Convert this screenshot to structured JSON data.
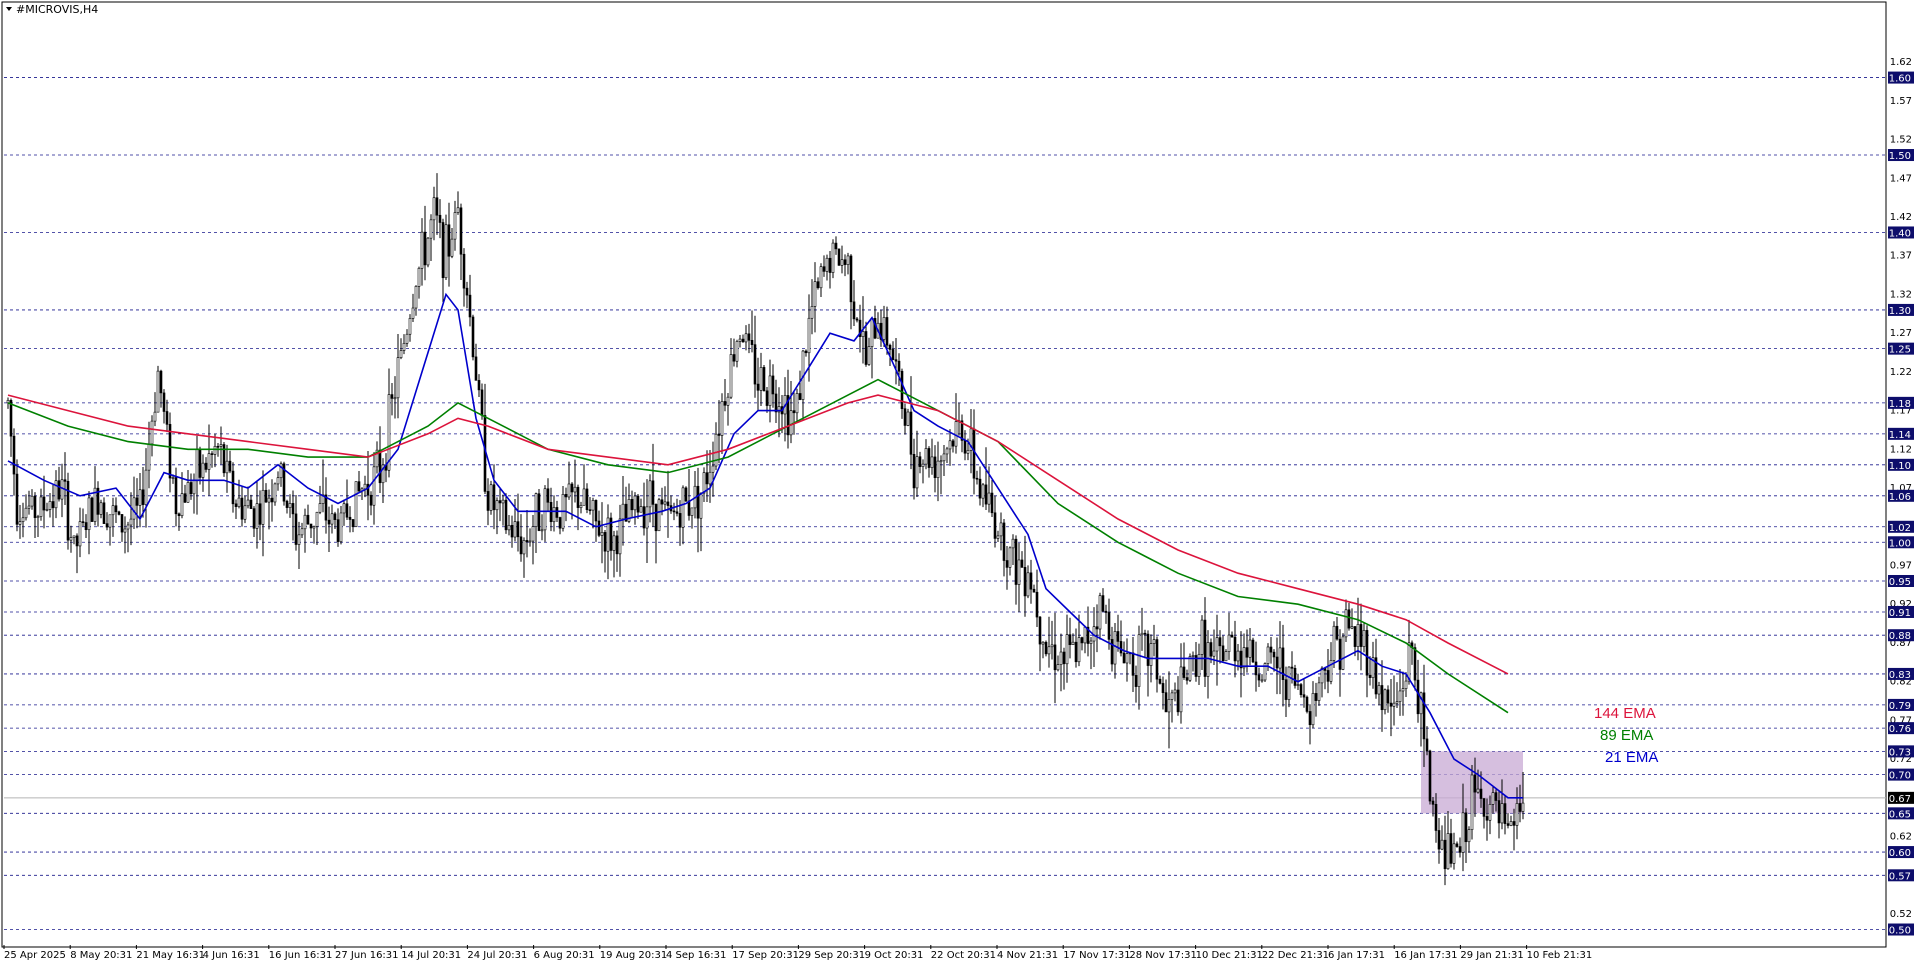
{
  "window": {
    "symbol_title": "#MICROVIS,H4"
  },
  "chart_data": {
    "type": "candlestick",
    "title": "#MICROVIS,H4",
    "ylim": [
      0.48,
      1.695
    ],
    "grid": "horizontal-dashed",
    "y_ticks": [
      "1.62",
      "1.57",
      "1.52",
      "1.47",
      "1.42",
      "1.37",
      "1.32",
      "1.27",
      "1.22",
      "1.17",
      "1.12",
      "1.07",
      "1.02",
      "0.97",
      "0.92",
      "0.87",
      "0.82",
      "0.77",
      "0.72",
      "0.67",
      "0.62",
      "0.57",
      "0.52"
    ],
    "highlighted_levels": [
      1.6,
      1.5,
      1.4,
      1.3,
      1.25,
      1.18,
      1.14,
      1.1,
      1.06,
      1.02,
      1.0,
      0.95,
      0.91,
      0.88,
      0.83,
      0.79,
      0.76,
      0.73,
      0.7,
      0.65,
      0.6,
      0.57,
      0.5
    ],
    "highlighted_labels": [
      "1.60",
      "1.50",
      "1.40",
      "1.30",
      "1.25",
      "1.18",
      "1.14",
      "1.10",
      "1.06",
      "1.02",
      "1.00",
      "0.95",
      "0.91",
      "0.88",
      "0.83",
      "0.79",
      "0.76",
      "0.73",
      "0.70",
      "0.65",
      "0.60",
      "0.57",
      "0.50"
    ],
    "current_price": 0.67,
    "current_price_label": "0.67",
    "x_ticks": [
      "25 Apr 2025",
      "8 May 20:31",
      "21 May 16:31",
      "4 Jun 16:31",
      "16 Jun 16:31",
      "27 Jun 16:31",
      "14 Jul 20:31",
      "24 Jul 20:31",
      "6 Aug 20:31",
      "19 Aug 20:31",
      "4 Sep 16:31",
      "17 Sep 20:31",
      "29 Sep 20:31",
      "9 Oct 20:31",
      "22 Oct 20:31",
      "4 Nov 21:31",
      "17 Nov 17:31",
      "28 Nov 17:31",
      "10 Dec 21:31",
      "22 Dec 21:31",
      "6 Jan 17:31",
      "16 Jan 17:31",
      "29 Jan 21:31",
      "10 Feb 21:31"
    ],
    "price_path": [
      [
        0,
        1.18
      ],
      [
        3,
        1.05
      ],
      [
        10,
        1.04
      ],
      [
        18,
        1.07
      ],
      [
        22,
        0.99
      ],
      [
        30,
        1.06
      ],
      [
        38,
        1.02
      ],
      [
        44,
        1.04
      ],
      [
        50,
        1.22
      ],
      [
        56,
        1.05
      ],
      [
        62,
        1.08
      ],
      [
        70,
        1.12
      ],
      [
        76,
        1.05
      ],
      [
        84,
        1.04
      ],
      [
        90,
        1.09
      ],
      [
        96,
        1.01
      ],
      [
        104,
        1.04
      ],
      [
        110,
        1.02
      ],
      [
        118,
        1.07
      ],
      [
        124,
        1.09
      ],
      [
        130,
        1.22
      ],
      [
        136,
        1.34
      ],
      [
        142,
        1.42
      ],
      [
        146,
        1.37
      ],
      [
        150,
        1.43
      ],
      [
        156,
        1.22
      ],
      [
        160,
        1.06
      ],
      [
        166,
        1.02
      ],
      [
        172,
        1.0
      ],
      [
        178,
        1.05
      ],
      [
        184,
        1.04
      ],
      [
        190,
        1.06
      ],
      [
        196,
        1.02
      ],
      [
        202,
        1.0
      ],
      [
        208,
        1.04
      ],
      [
        214,
        1.06
      ],
      [
        220,
        1.03
      ],
      [
        226,
        1.05
      ],
      [
        232,
        1.07
      ],
      [
        238,
        1.18
      ],
      [
        244,
        1.28
      ],
      [
        250,
        1.21
      ],
      [
        256,
        1.2
      ],
      [
        262,
        1.16
      ],
      [
        268,
        1.3
      ],
      [
        274,
        1.37
      ],
      [
        280,
        1.36
      ],
      [
        286,
        1.23
      ],
      [
        290,
        1.29
      ],
      [
        294,
        1.26
      ],
      [
        298,
        1.18
      ],
      [
        302,
        1.11
      ],
      [
        310,
        1.11
      ],
      [
        318,
        1.15
      ],
      [
        324,
        1.07
      ],
      [
        330,
        1.02
      ],
      [
        336,
        0.97
      ],
      [
        340,
        0.97
      ],
      [
        346,
        0.87
      ],
      [
        352,
        0.85
      ],
      [
        358,
        0.86
      ],
      [
        364,
        0.92
      ],
      [
        370,
        0.86
      ],
      [
        376,
        0.85
      ],
      [
        382,
        0.86
      ],
      [
        386,
        0.78
      ],
      [
        390,
        0.8
      ],
      [
        398,
        0.87
      ],
      [
        402,
        0.84
      ],
      [
        408,
        0.87
      ],
      [
        414,
        0.86
      ],
      [
        418,
        0.83
      ],
      [
        422,
        0.85
      ],
      [
        428,
        0.82
      ],
      [
        434,
        0.79
      ],
      [
        440,
        0.85
      ],
      [
        446,
        0.89
      ],
      [
        452,
        0.87
      ],
      [
        458,
        0.8
      ],
      [
        462,
        0.78
      ],
      [
        468,
        0.86
      ],
      [
        474,
        0.68
      ],
      [
        478,
        0.6
      ],
      [
        484,
        0.6
      ],
      [
        488,
        0.67
      ],
      [
        494,
        0.66
      ],
      [
        500,
        0.62
      ],
      [
        505,
        0.67
      ]
    ],
    "series": [
      {
        "name": "21 EMA",
        "color": "#0000cc",
        "values": [
          [
            0,
            1.105
          ],
          [
            12,
            1.08
          ],
          [
            24,
            1.06
          ],
          [
            36,
            1.07
          ],
          [
            44,
            1.03
          ],
          [
            52,
            1.09
          ],
          [
            60,
            1.08
          ],
          [
            72,
            1.08
          ],
          [
            80,
            1.07
          ],
          [
            90,
            1.1
          ],
          [
            100,
            1.07
          ],
          [
            110,
            1.05
          ],
          [
            120,
            1.07
          ],
          [
            130,
            1.12
          ],
          [
            138,
            1.22
          ],
          [
            146,
            1.32
          ],
          [
            150,
            1.3
          ],
          [
            156,
            1.16
          ],
          [
            162,
            1.08
          ],
          [
            170,
            1.04
          ],
          [
            178,
            1.04
          ],
          [
            186,
            1.04
          ],
          [
            196,
            1.02
          ],
          [
            206,
            1.03
          ],
          [
            218,
            1.04
          ],
          [
            226,
            1.05
          ],
          [
            234,
            1.07
          ],
          [
            242,
            1.14
          ],
          [
            250,
            1.17
          ],
          [
            258,
            1.17
          ],
          [
            266,
            1.22
          ],
          [
            274,
            1.27
          ],
          [
            282,
            1.26
          ],
          [
            288,
            1.29
          ],
          [
            294,
            1.24
          ],
          [
            302,
            1.17
          ],
          [
            310,
            1.15
          ],
          [
            320,
            1.13
          ],
          [
            330,
            1.07
          ],
          [
            340,
            1.01
          ],
          [
            346,
            0.94
          ],
          [
            354,
            0.91
          ],
          [
            362,
            0.88
          ],
          [
            372,
            0.86
          ],
          [
            380,
            0.85
          ],
          [
            390,
            0.85
          ],
          [
            400,
            0.85
          ],
          [
            410,
            0.84
          ],
          [
            420,
            0.84
          ],
          [
            430,
            0.82
          ],
          [
            440,
            0.84
          ],
          [
            450,
            0.86
          ],
          [
            458,
            0.84
          ],
          [
            466,
            0.83
          ],
          [
            474,
            0.78
          ],
          [
            482,
            0.72
          ],
          [
            490,
            0.7
          ],
          [
            500,
            0.67
          ],
          [
            505,
            0.67
          ]
        ]
      },
      {
        "name": "89 EMA",
        "color": "#008000",
        "values": [
          [
            0,
            1.18
          ],
          [
            20,
            1.15
          ],
          [
            40,
            1.13
          ],
          [
            60,
            1.12
          ],
          [
            80,
            1.12
          ],
          [
            100,
            1.11
          ],
          [
            120,
            1.11
          ],
          [
            140,
            1.15
          ],
          [
            150,
            1.18
          ],
          [
            160,
            1.16
          ],
          [
            180,
            1.12
          ],
          [
            200,
            1.1
          ],
          [
            220,
            1.09
          ],
          [
            240,
            1.11
          ],
          [
            260,
            1.15
          ],
          [
            280,
            1.19
          ],
          [
            290,
            1.21
          ],
          [
            310,
            1.17
          ],
          [
            330,
            1.13
          ],
          [
            350,
            1.05
          ],
          [
            370,
            1.0
          ],
          [
            390,
            0.96
          ],
          [
            410,
            0.93
          ],
          [
            430,
            0.92
          ],
          [
            450,
            0.9
          ],
          [
            466,
            0.87
          ],
          [
            480,
            0.83
          ],
          [
            500,
            0.78
          ]
        ]
      },
      {
        "name": "144 EMA",
        "color": "#dc143c",
        "values": [
          [
            0,
            1.19
          ],
          [
            20,
            1.17
          ],
          [
            40,
            1.15
          ],
          [
            60,
            1.14
          ],
          [
            80,
            1.13
          ],
          [
            100,
            1.12
          ],
          [
            120,
            1.11
          ],
          [
            140,
            1.14
          ],
          [
            150,
            1.16
          ],
          [
            160,
            1.15
          ],
          [
            180,
            1.12
          ],
          [
            200,
            1.11
          ],
          [
            220,
            1.1
          ],
          [
            240,
            1.12
          ],
          [
            260,
            1.15
          ],
          [
            280,
            1.18
          ],
          [
            290,
            1.19
          ],
          [
            310,
            1.17
          ],
          [
            330,
            1.13
          ],
          [
            350,
            1.08
          ],
          [
            370,
            1.03
          ],
          [
            390,
            0.99
          ],
          [
            410,
            0.96
          ],
          [
            430,
            0.94
          ],
          [
            450,
            0.92
          ],
          [
            466,
            0.9
          ],
          [
            480,
            0.87
          ],
          [
            500,
            0.83
          ]
        ]
      }
    ],
    "annotations": [
      {
        "text": "144 EMA",
        "color": "#dc143c"
      },
      {
        "text": "89 EMA",
        "color": "#008000"
      },
      {
        "text": "21 EMA",
        "color": "#0000cc"
      }
    ],
    "highlight_box": {
      "x0": 471,
      "x1": 505,
      "y0": 0.65,
      "y1": 0.73,
      "color": "#c8a9d4"
    }
  }
}
